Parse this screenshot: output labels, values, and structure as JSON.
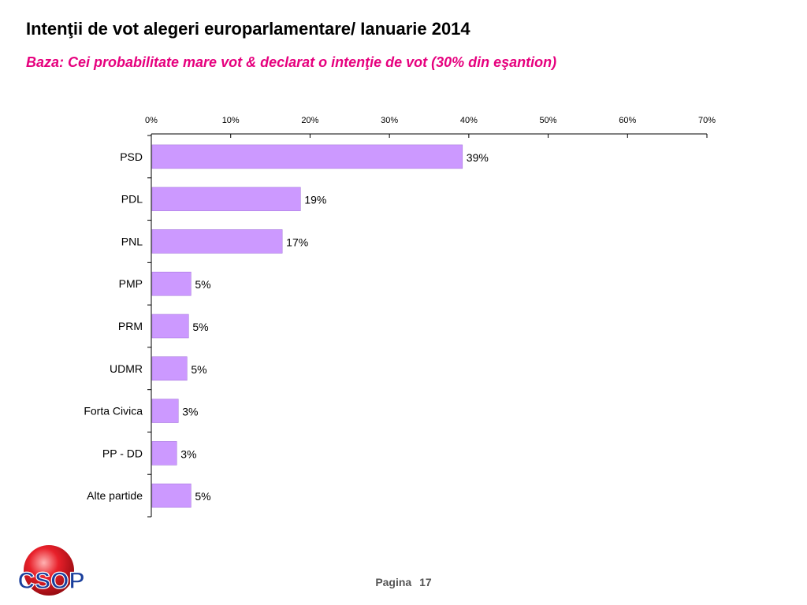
{
  "header": {
    "title": "Intenţii de vot alegeri europarlamentare/ Ianuarie 2014",
    "subtitle": "Baza: Cei probabilitate mare vot & declarat o intenţie de vot (30% din eşantion)"
  },
  "chart_data": {
    "type": "bar",
    "orientation": "horizontal",
    "title": "",
    "xlabel": "",
    "ylabel": "",
    "categories": [
      "PSD",
      "PDL",
      "PNL",
      "PMP",
      "PRM",
      "UDMR",
      "Forta Civica",
      "PP - DD",
      "Alte partide"
    ],
    "values": [
      39,
      19,
      17,
      5,
      5,
      5,
      3,
      3,
      5
    ],
    "value_display": [
      39.2,
      18.8,
      16.5,
      5.0,
      4.7,
      4.5,
      3.4,
      3.2,
      5.0
    ],
    "data_labels": [
      "39%",
      "19%",
      "17%",
      "5%",
      "5%",
      "5%",
      "3%",
      "3%",
      "5%"
    ],
    "xlim": [
      0,
      70
    ],
    "xticks": [
      0,
      10,
      20,
      30,
      40,
      50,
      60,
      70
    ],
    "xtick_labels": [
      "0%",
      "10%",
      "20%",
      "30%",
      "40%",
      "50%",
      "60%",
      "70%"
    ],
    "axis_position": "top",
    "grid": false,
    "bar_color": "#cc99ff",
    "bar_edge_color": "#a070d8"
  },
  "footer": {
    "page_label": "Pagina",
    "page_number": "17",
    "logo_text": "CSOP"
  },
  "colors": {
    "title": "#000000",
    "subtitle": "#e6007e",
    "logo_sphere": "#e8202a",
    "logo_text": "#1a3f9c"
  }
}
